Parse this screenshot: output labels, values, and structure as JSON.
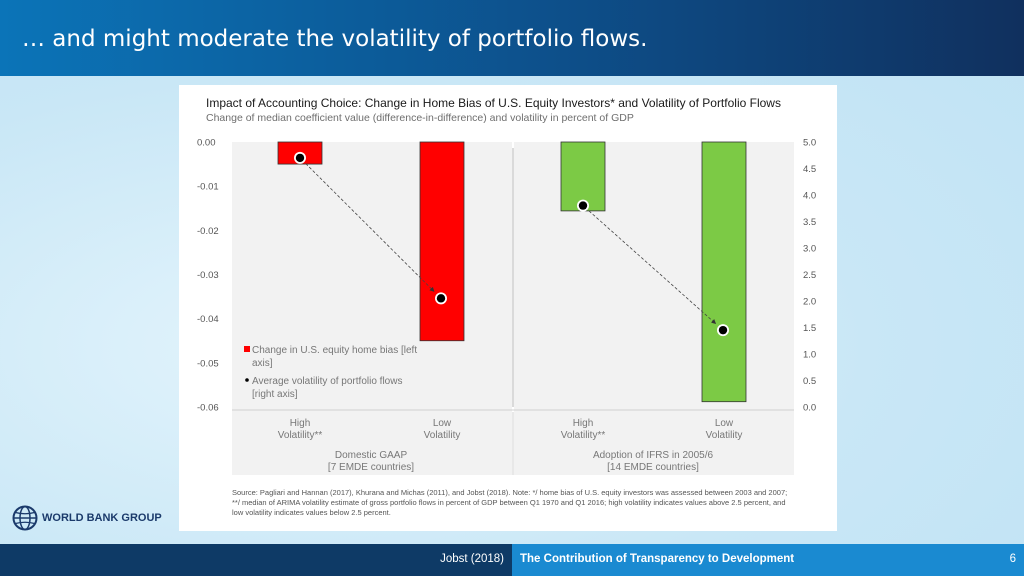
{
  "slide": {
    "title": "… and might moderate the volatility of portfolio flows.",
    "footer_author": "Jobst (2018)",
    "footer_title": "The Contribution of Transparency to Development",
    "page_number": "6",
    "logo_text": "WORLD BANK GROUP",
    "logo_icon": "globe-icon"
  },
  "source_note": "Source: Pagliari and Hannan (2017), Khurana and Michas (2011), and Jobst (2018). Note: */ home bias of U.S. equity investors was assessed between 2003 and 2007; **/ median of ARIMA volatility estimate of gross portfolio flows in percent of GDP between Q1 1970 and Q1 2016; high volatility indicates values above 2.5 percent, and low volatility indicates values below 2.5 percent.",
  "colors": {
    "gaap_bar": "#ff0000",
    "ifrs_bar": "#7cca45",
    "bar_border": "#333333",
    "panel_bg": "#f2f2f2",
    "marker": "#000000"
  },
  "chart_data": {
    "type": "bar",
    "title": "Impact of Accounting Choice: Change in Home Bias of U.S. Equity Investors* and Volatility of Portfolio Flows",
    "subtitle": "Change of median coefficient value (difference-in-difference) and volatility in percent of GDP",
    "left_axis": {
      "ylim": [
        -0.06,
        0.0
      ],
      "ticks": [
        "0.00",
        "-0.01",
        "-0.02",
        "-0.03",
        "-0.04",
        "-0.05",
        "-0.06"
      ],
      "tick_values": [
        0.0,
        -0.01,
        -0.02,
        -0.03,
        -0.04,
        -0.05,
        -0.06
      ]
    },
    "right_axis": {
      "ylim": [
        0.0,
        5.0
      ],
      "ticks": [
        "5.0",
        "4.5",
        "4.0",
        "3.5",
        "3.0",
        "2.5",
        "2.0",
        "1.5",
        "1.0",
        "0.5",
        "0.0"
      ],
      "tick_values": [
        5.0,
        4.5,
        4.0,
        3.5,
        3.0,
        2.5,
        2.0,
        1.5,
        1.0,
        0.5,
        0.0
      ]
    },
    "groups": [
      {
        "label_line1": "Domestic GAAP",
        "label_line2": "[7 EMDE countries]",
        "categories": [
          {
            "label_line1": "High",
            "label_line2": "Volatility**",
            "home_bias_change": -0.005,
            "volatility": 4.7
          },
          {
            "label_line1": "Low",
            "label_line2": "Volatility",
            "home_bias_change": -0.045,
            "volatility": 2.05
          }
        ]
      },
      {
        "label_line1": "Adoption of IFRS in 2005/6",
        "label_line2": "[14 EMDE countries]",
        "categories": [
          {
            "label_line1": "High",
            "label_line2": "Volatility**",
            "volatility_bar": 3.7,
            "volatility": 3.8
          },
          {
            "label_line1": "Low",
            "label_line2": "Volatility",
            "volatility_bar": 0.1,
            "volatility": 1.45
          }
        ]
      }
    ],
    "legend": {
      "placement": "left-bottom",
      "bar_label_line1": "Change in U.S. equity home bias [left",
      "bar_label_line2": "axis]",
      "dot_label_line1": "Average volatility of portfolio flows",
      "dot_label_line2": "[right axis]"
    }
  }
}
